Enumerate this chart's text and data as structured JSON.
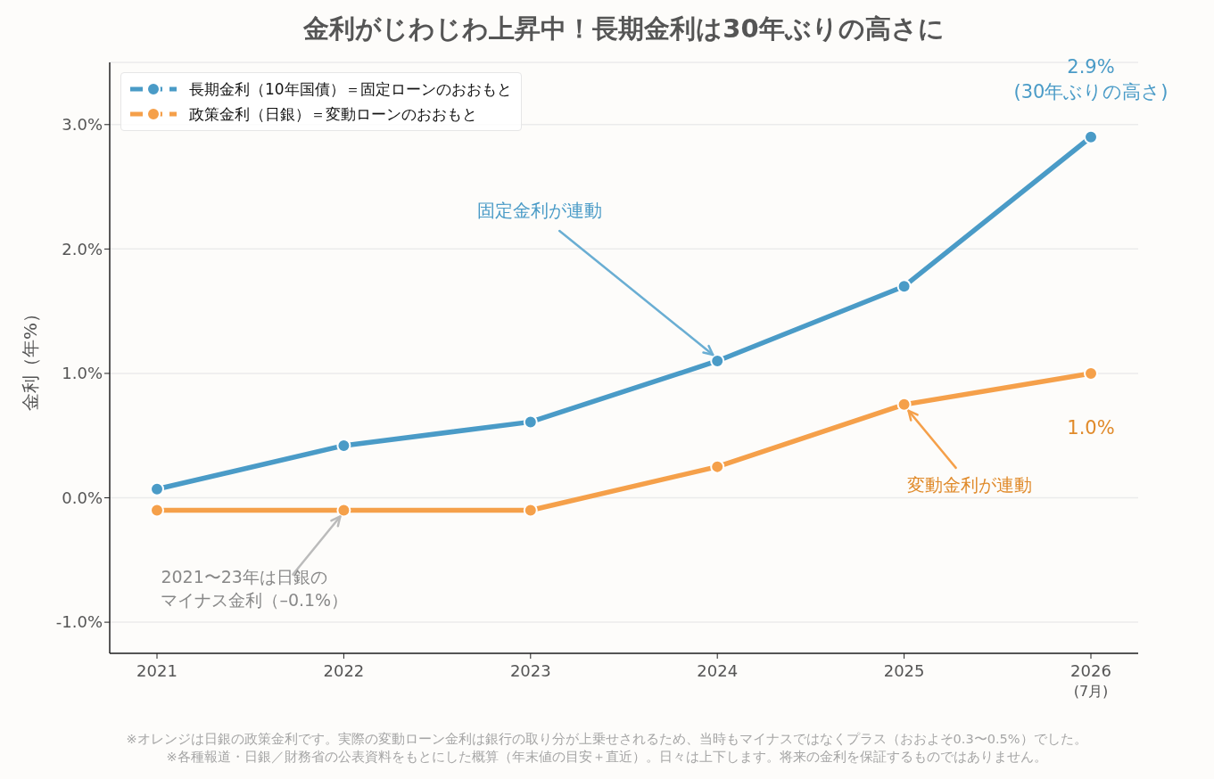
{
  "chart_data": {
    "type": "line",
    "title": "金利がじわじわ上昇中！長期金利は30年ぶりの高さに",
    "ylabel": "金利（年%）",
    "categories": [
      "2021",
      "2022",
      "2023",
      "2024",
      "2025",
      "2026\n(7月)"
    ],
    "series": [
      {
        "name": "長期金利（10年国債）＝固定ローンのおおもと",
        "color": "#4a9bc7",
        "values": [
          0.07,
          0.42,
          0.61,
          1.1,
          1.7,
          2.9
        ]
      },
      {
        "name": "政策金利（日銀）＝変動ローンのおおもと",
        "color": "#f5a04a",
        "values": [
          -0.1,
          -0.1,
          -0.1,
          0.25,
          0.75,
          1.0
        ]
      }
    ],
    "ylim": [
      -1.25,
      3.5
    ],
    "yticks": [
      {
        "value": -1,
        "label": "-1.0%"
      },
      {
        "value": 0,
        "label": "0.0%"
      },
      {
        "value": 1,
        "label": "1.0%"
      },
      {
        "value": 2,
        "label": "2.0%"
      },
      {
        "value": 3,
        "label": "3.0%"
      }
    ],
    "grid": "y",
    "legend": "top left",
    "marker": "circle",
    "line_style": "solid",
    "annotations": [
      {
        "text": "2.9%\n(30年ぶりの高さ)",
        "x": "2026\n(7月)",
        "y": 2.9
      },
      {
        "text": "固定金利が連動",
        "x": "2024",
        "y": 1.1
      },
      {
        "text": "1.0%",
        "x": "2026\n(7月)",
        "y": 1.0
      },
      {
        "text": "変動金利が連動",
        "x": "2025",
        "y": 0.75
      },
      {
        "text": "2021〜23年は日銀のマイナス金利（–0.1%）",
        "x": "2022",
        "y": -0.1
      },
      "※オレンジは日銀の政策金利です。実際の変動ローン金利は銀行の取り分が上乗せされるため、当時もマイナスではなくプラス（おおよそ0.3〜0.5%）でした。",
      "※各種報道・日銀／財務省の公表資料をもとにした概算（年末値の目安＋直近）。日々は上下します。将来の金利を保証するものではありません。"
    ]
  }
}
